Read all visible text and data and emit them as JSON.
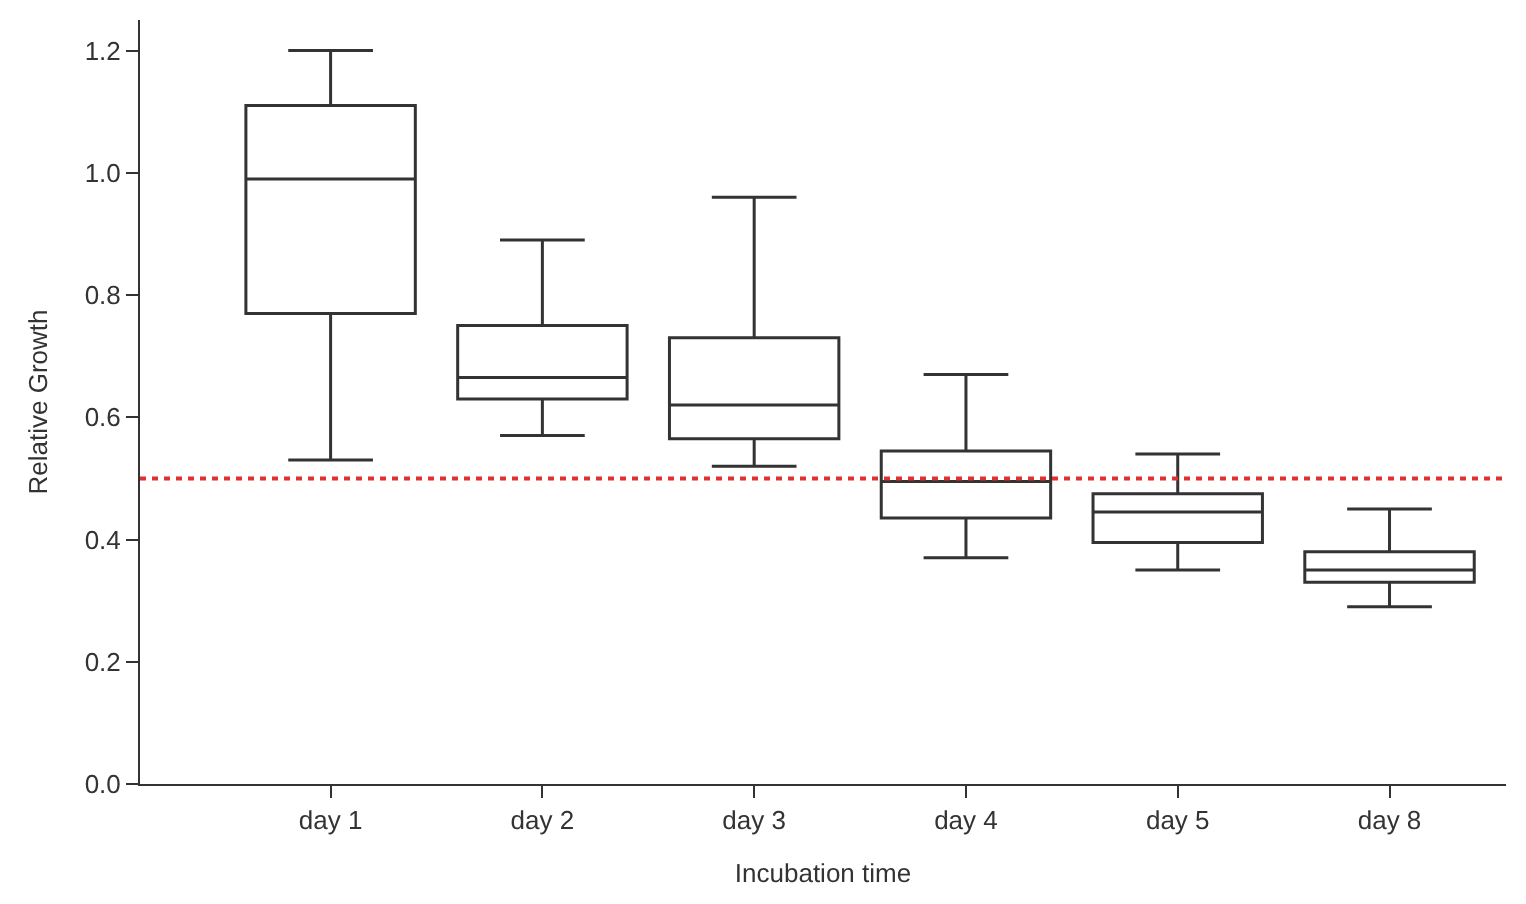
{
  "chart_data": {
    "type": "box",
    "xlabel": "Incubation time",
    "ylabel": "Relative Growth",
    "categories": [
      "day 1",
      "day 2",
      "day 3",
      "day 4",
      "day 5",
      "day 8"
    ],
    "boxes": [
      {
        "low": 0.53,
        "q1": 0.77,
        "median": 0.99,
        "q3": 1.11,
        "high": 1.2
      },
      {
        "low": 0.57,
        "q1": 0.63,
        "median": 0.665,
        "q3": 0.75,
        "high": 0.89
      },
      {
        "low": 0.52,
        "q1": 0.565,
        "median": 0.62,
        "q3": 0.73,
        "high": 0.96
      },
      {
        "low": 0.37,
        "q1": 0.435,
        "median": 0.495,
        "q3": 0.545,
        "high": 0.67
      },
      {
        "low": 0.35,
        "q1": 0.395,
        "median": 0.445,
        "q3": 0.475,
        "high": 0.54
      },
      {
        "low": 0.29,
        "q1": 0.33,
        "median": 0.35,
        "q3": 0.38,
        "high": 0.45
      }
    ],
    "color": "#333333",
    "ylim": [
      0,
      1.25
    ],
    "yticks": [
      {
        "value": 0,
        "label": "0.0"
      },
      0.2,
      0.4,
      0.6,
      0.8,
      {
        "value": 1.0,
        "label": "1.0"
      },
      1.2
    ],
    "ref_lines": [
      {
        "axis": "y",
        "value": 0.5,
        "label": null,
        "color": "#e03030",
        "line_style": "dotted"
      }
    ],
    "legend": false
  }
}
